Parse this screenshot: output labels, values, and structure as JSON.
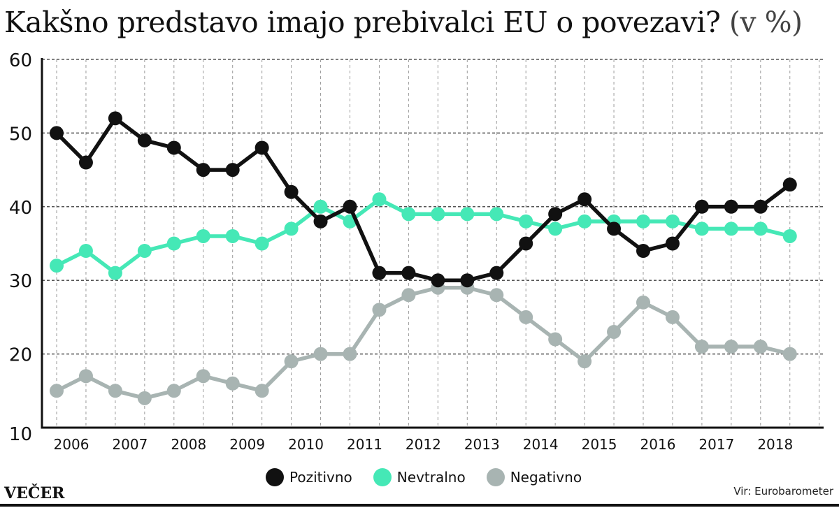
{
  "header": {
    "title": "Kakšno predstavo imajo prebivalci EU o povezavi?",
    "unit": "(v %)"
  },
  "footer": {
    "logo": "VEČER",
    "source": "Vir: Eurobarometer"
  },
  "chart_data": {
    "type": "line",
    "title": "Kakšno predstavo imajo prebivalci EU o povezavi? (v %)",
    "xlabel": "",
    "ylabel": "",
    "ylim": [
      10,
      60
    ],
    "yticks": [
      10,
      20,
      30,
      40,
      50,
      60
    ],
    "grid": true,
    "legend_position": "bottom-center",
    "x_tick_labels": [
      "2006",
      "2007",
      "2008",
      "2009",
      "2010",
      "2011",
      "2012",
      "2013",
      "2014",
      "2015",
      "2016",
      "2017",
      "2018"
    ],
    "points_per_label": 2,
    "series": [
      {
        "name": "Pozitivno",
        "color": "#111111",
        "values": [
          50,
          46,
          52,
          49,
          48,
          45,
          45,
          48,
          42,
          38,
          40,
          31,
          31,
          30,
          30,
          31,
          35,
          39,
          41,
          37,
          34,
          35,
          40,
          40,
          40,
          43
        ]
      },
      {
        "name": "Nevtralno",
        "color": "#45e8b6",
        "values": [
          32,
          34,
          31,
          34,
          35,
          36,
          36,
          35,
          37,
          40,
          38,
          41,
          39,
          39,
          39,
          39,
          38,
          37,
          38,
          38,
          38,
          38,
          37,
          37,
          37,
          36
        ]
      },
      {
        "name": "Negativno",
        "color": "#a8b4b2",
        "values": [
          15,
          17,
          15,
          14,
          15,
          17,
          16,
          15,
          19,
          20,
          20,
          26,
          28,
          29,
          29,
          28,
          25,
          22,
          19,
          23,
          27,
          25,
          21,
          21,
          21,
          20
        ]
      }
    ]
  }
}
